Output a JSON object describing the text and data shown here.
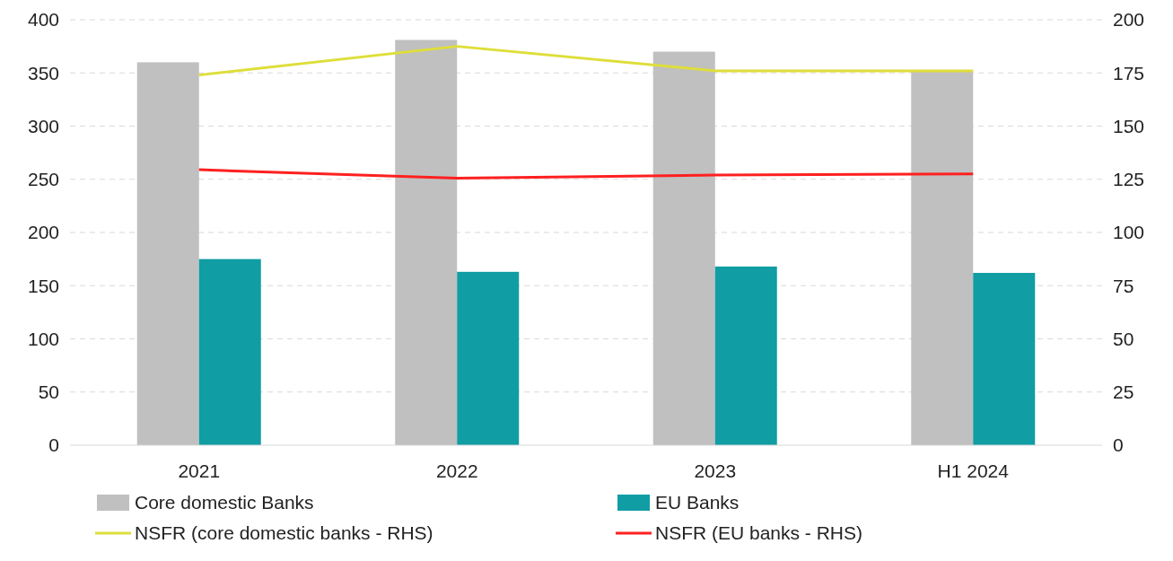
{
  "chart_data": {
    "type": "bar",
    "categories": [
      "2021",
      "2022",
      "2023",
      "H1 2024"
    ],
    "series": [
      {
        "name": "Core domestic Banks",
        "color": "#c0c0c0",
        "values": [
          360,
          381,
          370,
          352
        ]
      },
      {
        "name": "EU Banks",
        "color": "#119da4",
        "values": [
          175,
          163,
          168,
          162
        ]
      },
      {
        "name": "NSFR (core domestic banks - RHS)",
        "type": "line",
        "axis": "y2",
        "color": "#dede3a",
        "values": [
          174,
          187.5,
          176,
          176
        ]
      },
      {
        "name": "NSFR (EU banks - RHS)",
        "type": "line",
        "axis": "y2",
        "color": "#ff2020",
        "values": [
          129.5,
          125.5,
          127,
          127.5
        ]
      }
    ],
    "ylim": [
      0,
      400
    ],
    "yticks": [
      0,
      50,
      100,
      150,
      200,
      250,
      300,
      350,
      400
    ],
    "y2lim": [
      0,
      200
    ],
    "y2ticks": [
      0,
      25,
      50,
      75,
      100,
      125,
      150,
      175,
      200
    ],
    "grid": "y",
    "legend": "bottom",
    "line_style": "solid",
    "marker": "none"
  }
}
